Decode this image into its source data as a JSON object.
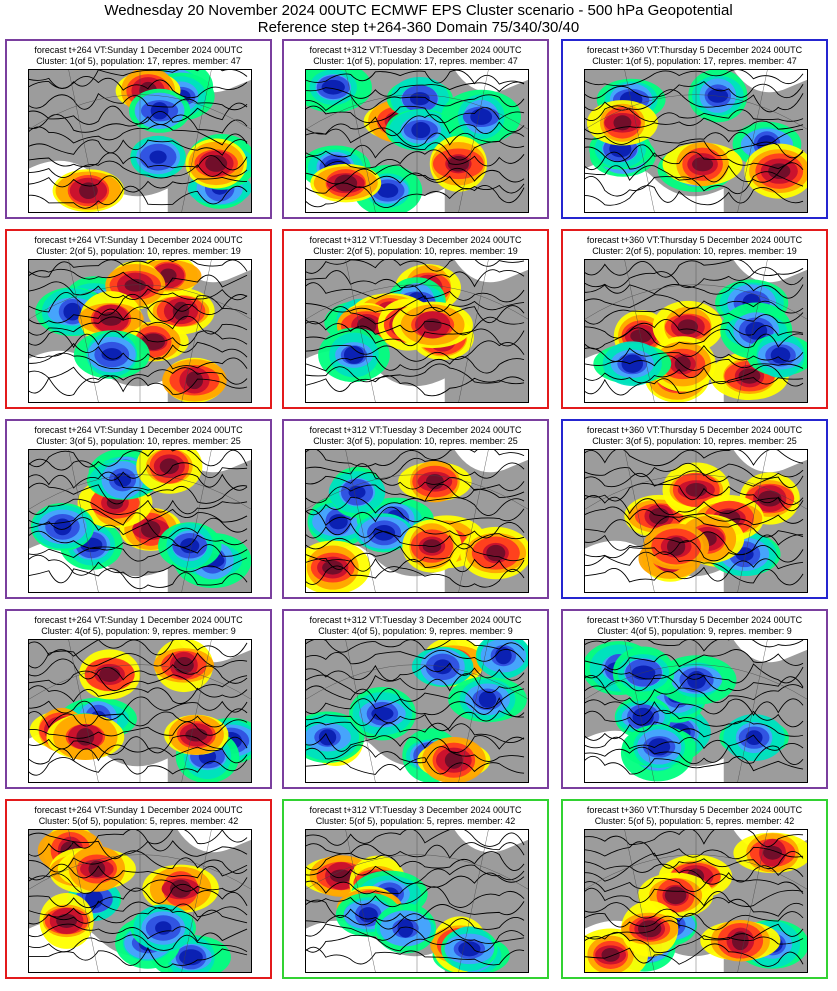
{
  "header": {
    "line1": "Wednesday 20 November 2024 00UTC ECMWF EPS Cluster scenario - 500 hPa Geopotential",
    "line2": "Reference step t+264-360 Domain 75/340/30/40"
  },
  "colors": {
    "purple_frame": "#7a3f9e",
    "red_frame": "#e31a1c",
    "blue_frame": "#2525d0",
    "green_frame": "#32d232",
    "land": "#9c9c9c"
  },
  "panels": [
    {
      "frame": "purple",
      "caption1": "forecast t+264 VT:Sunday 1 December 2024 00UTC",
      "caption2": "Cluster: 1(of 5), population: 17, repres. member: 47"
    },
    {
      "frame": "purple",
      "caption1": "forecast t+312 VT:Tuesday 3 December 2024 00UTC",
      "caption2": "Cluster: 1(of 5), population: 17, repres. member: 47"
    },
    {
      "frame": "blue",
      "caption1": "forecast t+360 VT:Thursday 5 December 2024 00UTC",
      "caption2": "Cluster: 1(of 5), population: 17, repres. member: 47"
    },
    {
      "frame": "red",
      "caption1": "forecast t+264 VT:Sunday 1 December 2024 00UTC",
      "caption2": "Cluster: 2(of 5), population: 10, repres. member: 19"
    },
    {
      "frame": "red",
      "caption1": "forecast t+312 VT:Tuesday 3 December 2024 00UTC",
      "caption2": "Cluster: 2(of 5), population: 10, repres. member: 19"
    },
    {
      "frame": "red",
      "caption1": "forecast t+360 VT:Thursday 5 December 2024 00UTC",
      "caption2": "Cluster: 2(of 5), population: 10, repres. member: 19"
    },
    {
      "frame": "purple",
      "caption1": "forecast t+264 VT:Sunday 1 December 2024 00UTC",
      "caption2": "Cluster: 3(of 5), population: 10, repres. member: 25"
    },
    {
      "frame": "purple",
      "caption1": "forecast t+312 VT:Tuesday 3 December 2024 00UTC",
      "caption2": "Cluster: 3(of 5), population: 10, repres. member: 25"
    },
    {
      "frame": "blue",
      "caption1": "forecast t+360 VT:Thursday 5 December 2024 00UTC",
      "caption2": "Cluster: 3(of 5), population: 10, repres. member: 25"
    },
    {
      "frame": "purple",
      "caption1": "forecast t+264 VT:Sunday 1 December 2024 00UTC",
      "caption2": "Cluster: 4(of 5), population: 9, repres. member: 9"
    },
    {
      "frame": "purple",
      "caption1": "forecast t+312 VT:Tuesday 3 December 2024 00UTC",
      "caption2": "Cluster: 4(of 5), population: 9, repres. member: 9"
    },
    {
      "frame": "purple",
      "caption1": "forecast t+360 VT:Thursday 5 December 2024 00UTC",
      "caption2": "Cluster: 4(of 5), population: 9, repres. member: 9"
    },
    {
      "frame": "red",
      "caption1": "forecast t+264 VT:Sunday 1 December 2024 00UTC",
      "caption2": "Cluster: 5(of 5), population: 5, repres. member: 42"
    },
    {
      "frame": "green",
      "caption1": "forecast t+312 VT:Tuesday 3 December 2024 00UTC",
      "caption2": "Cluster: 5(of 5), population: 5, repres. member: 42"
    },
    {
      "frame": "green",
      "caption1": "forecast t+360 VT:Thursday 5 December 2024 00UTC",
      "caption2": "Cluster: 5(of 5), population: 5, repres. member: 42"
    }
  ]
}
